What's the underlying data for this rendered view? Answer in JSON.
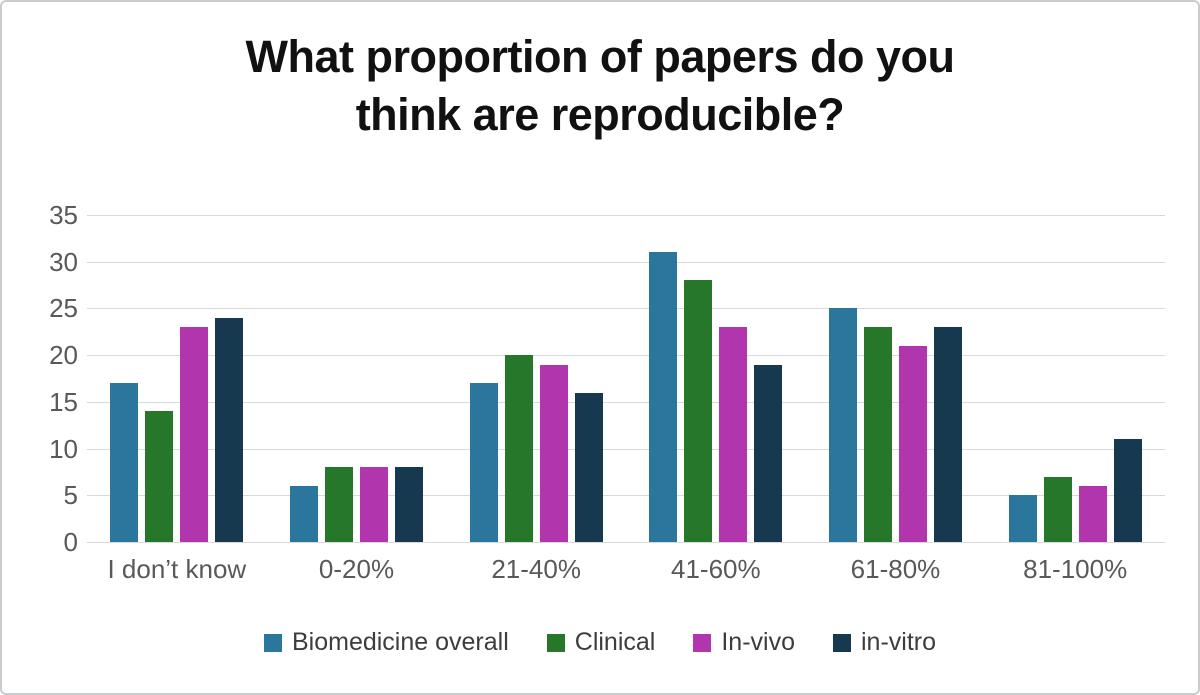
{
  "chart_data": {
    "type": "bar",
    "title": "What proportion of papers do you think are reproducible?",
    "title_lines": [
      "What proportion of papers do you",
      "think are reproducible?"
    ],
    "categories": [
      "I don’t know",
      "0-20%",
      "21-40%",
      "41-60%",
      "61-80%",
      "81-100%"
    ],
    "series": [
      {
        "name": "Biomedicine overall",
        "color": "#2a769c",
        "values": [
          17,
          6,
          17,
          31,
          25,
          5
        ]
      },
      {
        "name": "Clinical",
        "color": "#26772a",
        "values": [
          14,
          8,
          20,
          28,
          23,
          7
        ]
      },
      {
        "name": "In-vivo",
        "color": "#b135ac",
        "values": [
          23,
          8,
          19,
          23,
          21,
          6
        ]
      },
      {
        "name": "in-vitro",
        "color": "#16394f",
        "values": [
          24,
          8,
          16,
          19,
          23,
          11
        ]
      }
    ],
    "xlabel": "",
    "ylabel": "",
    "ylim": [
      0,
      35
    ],
    "ytick_step": 5,
    "grid": "horizontal",
    "legend_position": "bottom",
    "colors": {
      "gridline": "#d9d9d9",
      "axis_label": "#595959",
      "legend_text": "#3d3d3d",
      "title": "#111111",
      "background": "#ffffff"
    }
  }
}
